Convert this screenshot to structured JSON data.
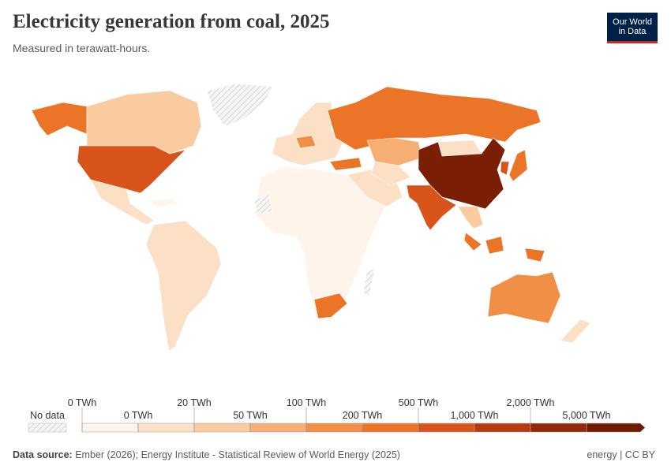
{
  "header": {
    "title": "Electricity generation from coal, 2025",
    "subtitle": "Measured in terawatt-hours.",
    "logo": [
      "Our World",
      "in Data"
    ]
  },
  "legend": {
    "no_data": "No data",
    "labels": [
      "0 TWh",
      "0 TWh",
      "20 TWh",
      "50 TWh",
      "100 TWh",
      "200 TWh",
      "500 TWh",
      "1,000 TWh",
      "2,000 TWh",
      "5,000 TWh"
    ],
    "colors": [
      "#fef4ea",
      "#fbe0c5",
      "#f9cb9e",
      "#f6ae72",
      "#f28f46",
      "#ec7427",
      "#d9541a",
      "#b63c10",
      "#91290a",
      "#6e1a04"
    ]
  },
  "footer": {
    "source_label": "Data source:",
    "source": "Ember (2026); Energy Institute - Statistical Review of World Energy (2025)",
    "license": "energy | CC BY"
  }
}
